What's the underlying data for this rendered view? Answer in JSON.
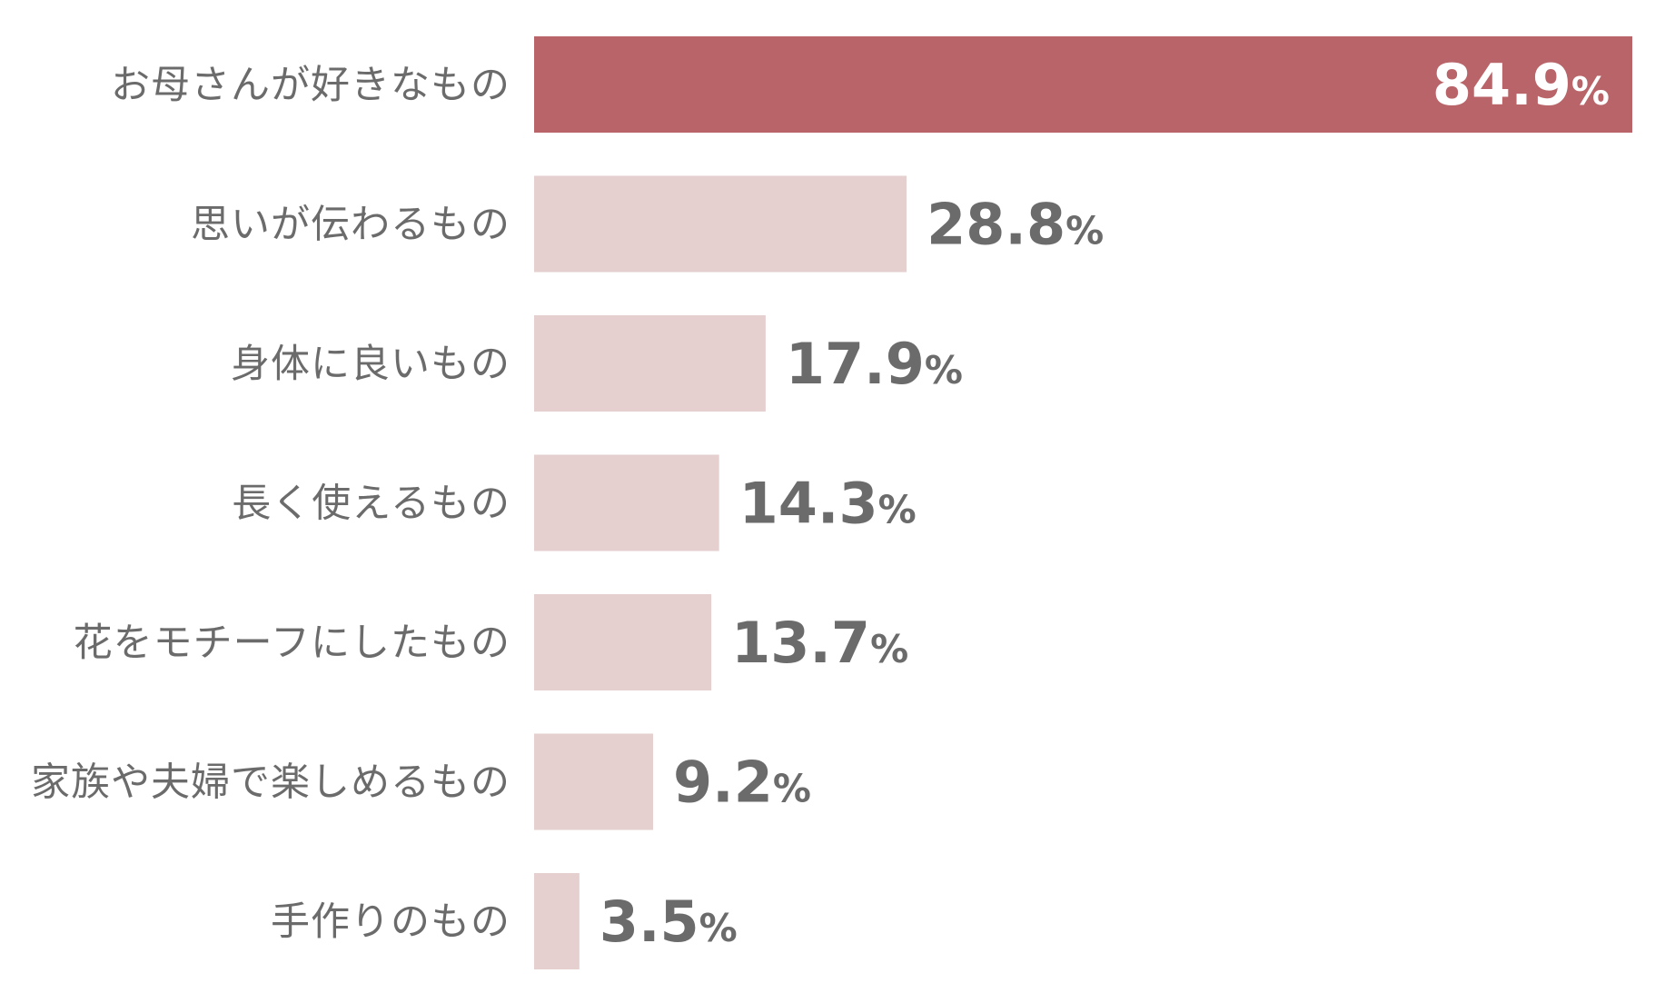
{
  "chart_data": {
    "type": "bar",
    "orientation": "horizontal",
    "categories": [
      "お母さんが好きなもの",
      "思いが伝わるもの",
      "身体に良いもの",
      "長く使えるもの",
      "花をモチーフにしたもの",
      "家族や夫婦で楽しめるもの",
      "手作りのもの"
    ],
    "values": [
      84.9,
      28.8,
      17.9,
      14.3,
      13.7,
      9.2,
      3.5
    ],
    "value_labels": [
      "84.9",
      "28.8",
      "17.9",
      "14.3",
      "13.7",
      "9.2",
      "3.5"
    ],
    "unit": "%",
    "xlim": [
      0,
      84.9
    ],
    "grid": false,
    "legend": "none",
    "title": "",
    "xlabel": "",
    "ylabel": "",
    "colors": {
      "highlight_bar": "#b86468",
      "bar": "#e6cfcf",
      "label_text": "#6b6b6b",
      "value_text": "#6b6b6b",
      "highlight_value_text": "#ffffff"
    }
  }
}
